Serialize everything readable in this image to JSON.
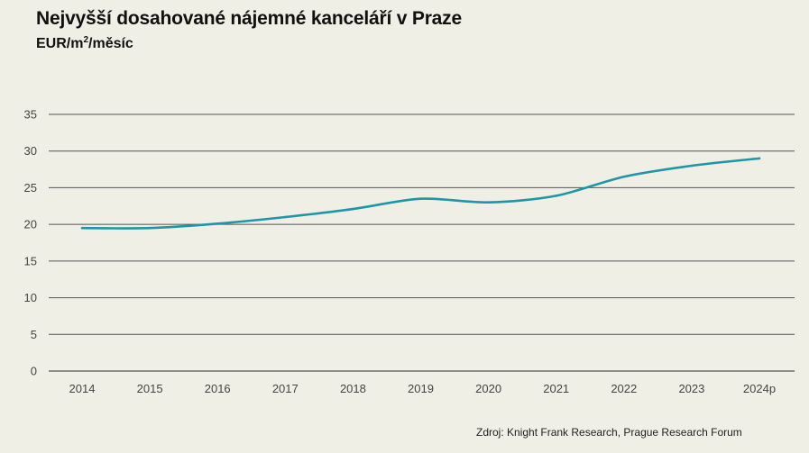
{
  "title": "Nejvyšší dosahované nájemné kanceláří v Praze",
  "subtitle": {
    "prefix": "EUR/m",
    "sup": "2",
    "suffix": "/měsíc"
  },
  "source": "Zdroj: Knight Frank Research, Prague Research Forum",
  "colors": {
    "background": "#f0efe5",
    "line": "#1f95a8",
    "grid": "#555555"
  },
  "chart_data": {
    "type": "line",
    "title": "Nejvyšší dosahované nájemné kanceláří v Praze",
    "ylabel": "EUR/m2/měsíc",
    "xlabel": "",
    "categories": [
      "2014",
      "2015",
      "2016",
      "2017",
      "2018",
      "2019",
      "2020",
      "2021",
      "2022",
      "2023",
      "2024p"
    ],
    "series": [
      {
        "values": [
          19.5,
          19.5,
          20.1,
          21.0,
          22.1,
          23.5,
          23.0,
          23.9,
          26.5,
          28.0,
          29.0
        ]
      }
    ],
    "ylim": [
      0,
      35
    ],
    "yticks": [
      0,
      5,
      10,
      15,
      20,
      25,
      30,
      35
    ],
    "grid": true,
    "legend": "none"
  }
}
